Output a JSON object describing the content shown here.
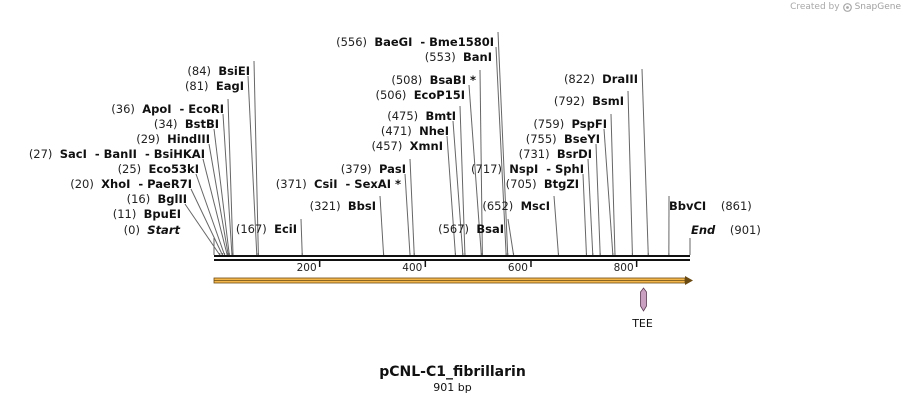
{
  "credit": {
    "prefix": "Created by",
    "brand": "SnapGene"
  },
  "plasmid": {
    "name": "pCNL-C1_fibrillarin",
    "length_label": "901 bp",
    "length": 901
  },
  "ruler": {
    "ticks": [
      200,
      400,
      600,
      800
    ]
  },
  "start_site": {
    "name": "Start",
    "pos_label": "(0)"
  },
  "end_site": {
    "name": "End",
    "pos_label": "(901)"
  },
  "sites": [
    {
      "id": "bpuei",
      "pos": 11,
      "pos_label": "(11)",
      "names": [
        "BpuEI"
      ]
    },
    {
      "id": "bglii",
      "pos": 16,
      "pos_label": "(16)",
      "names": [
        "BglII"
      ]
    },
    {
      "id": "xhoi",
      "pos": 20,
      "pos_label": "(20)",
      "names": [
        "XhoI",
        "PaeR7I"
      ]
    },
    {
      "id": "eco53ki",
      "pos": 25,
      "pos_label": "(25)",
      "names": [
        "Eco53kI"
      ]
    },
    {
      "id": "saci",
      "pos": 27,
      "pos_label": "(27)",
      "names": [
        "SacI",
        "BanII",
        "BsiHKAI"
      ]
    },
    {
      "id": "hindiii",
      "pos": 29,
      "pos_label": "(29)",
      "names": [
        "HindIII"
      ]
    },
    {
      "id": "bstbi",
      "pos": 34,
      "pos_label": "(34)",
      "names": [
        "BstBI"
      ]
    },
    {
      "id": "apoi",
      "pos": 36,
      "pos_label": "(36)",
      "names": [
        "ApoI",
        "EcoRI"
      ]
    },
    {
      "id": "eagi",
      "pos": 81,
      "pos_label": "(81)",
      "names": [
        "EagI"
      ]
    },
    {
      "id": "bsiei",
      "pos": 84,
      "pos_label": "(84)",
      "names": [
        "BsiEI"
      ]
    },
    {
      "id": "ecii",
      "pos": 167,
      "pos_label": "(167)",
      "names": [
        "EciI"
      ]
    },
    {
      "id": "bbsi",
      "pos": 321,
      "pos_label": "(321)",
      "names": [
        "BbsI"
      ]
    },
    {
      "id": "csii",
      "pos": 371,
      "pos_label": "(371)",
      "names": [
        "CsiI",
        "SexAI *"
      ]
    },
    {
      "id": "pasi",
      "pos": 379,
      "pos_label": "(379)",
      "names": [
        "PasI"
      ]
    },
    {
      "id": "xmni",
      "pos": 457,
      "pos_label": "(457)",
      "names": [
        "XmnI"
      ]
    },
    {
      "id": "nhei",
      "pos": 471,
      "pos_label": "(471)",
      "names": [
        "NheI"
      ]
    },
    {
      "id": "bmti",
      "pos": 475,
      "pos_label": "(475)",
      "names": [
        "BmtI"
      ]
    },
    {
      "id": "ecop15i",
      "pos": 506,
      "pos_label": "(506)",
      "names": [
        "EcoP15I"
      ]
    },
    {
      "id": "bsabi",
      "pos": 508,
      "pos_label": "(508)",
      "names": [
        "BsaBI *"
      ]
    },
    {
      "id": "bani",
      "pos": 553,
      "pos_label": "(553)",
      "names": [
        "BanI"
      ]
    },
    {
      "id": "baegi",
      "pos": 556,
      "pos_label": "(556)",
      "names": [
        "BaeGI",
        "Bme1580I"
      ]
    },
    {
      "id": "bsai",
      "pos": 567,
      "pos_label": "(567)",
      "names": [
        "BsaI"
      ]
    },
    {
      "id": "mscI",
      "pos": 652,
      "pos_label": "(652)",
      "names": [
        "MscI"
      ]
    },
    {
      "id": "btgzi",
      "pos": 705,
      "pos_label": "(705)",
      "names": [
        "BtgZI"
      ]
    },
    {
      "id": "nspi",
      "pos": 717,
      "pos_label": "(717)",
      "names": [
        "NspI",
        "SphI"
      ]
    },
    {
      "id": "bsrdi",
      "pos": 731,
      "pos_label": "(731)",
      "names": [
        "BsrDI"
      ]
    },
    {
      "id": "bseyi",
      "pos": 755,
      "pos_label": "(755)",
      "names": [
        "BseYI"
      ]
    },
    {
      "id": "pspfi",
      "pos": 759,
      "pos_label": "(759)",
      "names": [
        "PspFI"
      ]
    },
    {
      "id": "bsmi",
      "pos": 792,
      "pos_label": "(792)",
      "names": [
        "BsmI"
      ]
    },
    {
      "id": "draiii",
      "pos": 822,
      "pos_label": "(822)",
      "names": [
        "DraIII"
      ]
    },
    {
      "id": "bbvci",
      "pos": 861,
      "pos_label": "(861)",
      "names": [
        "BbvCI"
      ]
    }
  ],
  "feature": {
    "name": "TEE",
    "start": 811,
    "end": 815
  },
  "orf": {
    "start": 0,
    "end": 901
  },
  "colors": {
    "backbone": "#111111",
    "orf_fill": "#f2b64a",
    "orf_edge": "#6b4b12",
    "feature_fill": "#c9a0bf",
    "feature_edge": "#5a3a52",
    "leader": "#666666",
    "pos_text": "#222222",
    "enzyme_text": "#111111"
  }
}
